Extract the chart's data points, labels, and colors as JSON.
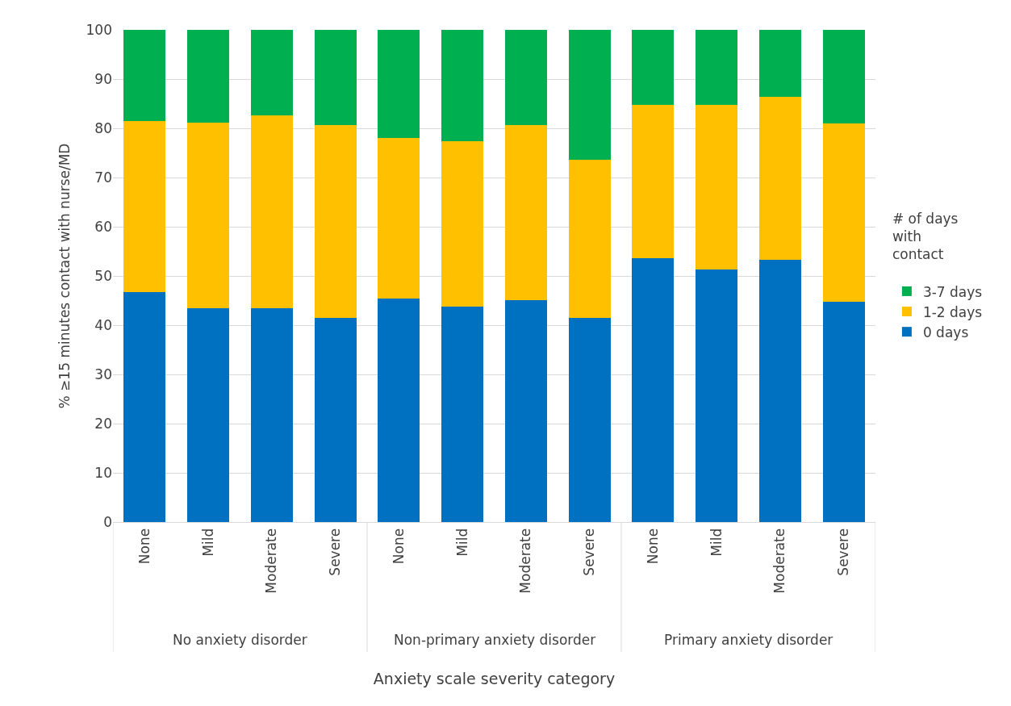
{
  "chart_data": {
    "type": "bar",
    "stacked": true,
    "xlabel": "Anxiety scale severity category",
    "ylabel": "% ≥15 minutes contact with nurse/MD",
    "legend_title": "# of days with contact",
    "categories": [
      "None",
      "Mild",
      "Moderate",
      "Severe",
      "None",
      "Mild",
      "Moderate",
      "Severe",
      "None",
      "Mild",
      "Moderate",
      "Severe"
    ],
    "annotations": [
      "No anxiety disorder",
      "Non-primary anxiety disorder",
      "Primary anxiety disorder"
    ],
    "series": [
      {
        "name": "0 days",
        "color": "#0070c0",
        "values": [
          46.7,
          43.4,
          43.4,
          41.5,
          45.4,
          43.8,
          45.1,
          41.5,
          53.6,
          51.3,
          53.3,
          44.8
        ]
      },
      {
        "name": "1-2 days",
        "color": "#ffc000",
        "values": [
          34.8,
          37.7,
          39.2,
          39.2,
          32.6,
          33.6,
          35.6,
          32.1,
          31.2,
          33.5,
          33.1,
          36.2
        ]
      },
      {
        "name": "3-7 days",
        "color": "#00b050",
        "values": [
          18.5,
          18.9,
          17.4,
          19.3,
          22.0,
          22.6,
          19.3,
          26.4,
          15.2,
          15.2,
          13.6,
          19.0
        ]
      }
    ],
    "ylim": [
      0,
      100
    ],
    "yticks": [
      0,
      10,
      20,
      30,
      40,
      50,
      60,
      70,
      80,
      90,
      100
    ],
    "grid": "y",
    "legend": "right"
  }
}
